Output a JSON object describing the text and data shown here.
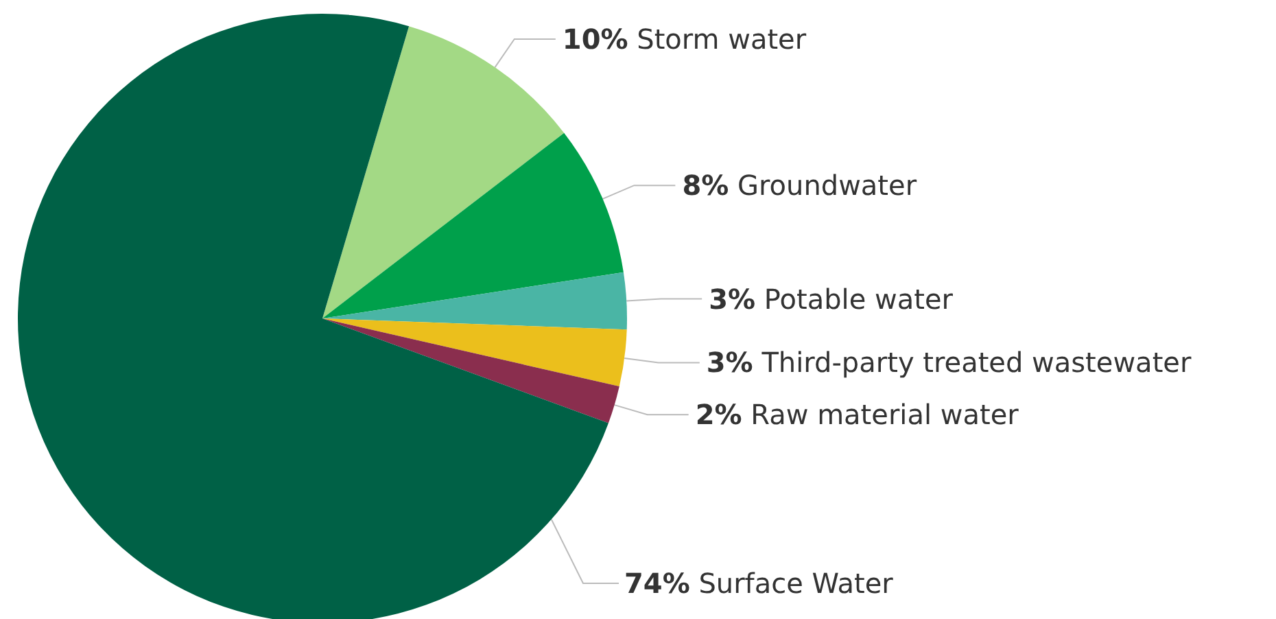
{
  "chart_data": {
    "type": "pie",
    "categories": [
      "Storm water",
      "Groundwater",
      "Potable water",
      "Third-party treated wastewater",
      "Raw material water",
      "Surface Water"
    ],
    "values": [
      10,
      8,
      3,
      3,
      2,
      74
    ],
    "value_labels": [
      "10%",
      "8%",
      "3%",
      "3%",
      "2%",
      "74%"
    ],
    "colors": [
      "#a3d985",
      "#00a04b",
      "#4ab5a5",
      "#ebbf1c",
      "#8a2e4e",
      "#006146"
    ],
    "legend": false
  }
}
